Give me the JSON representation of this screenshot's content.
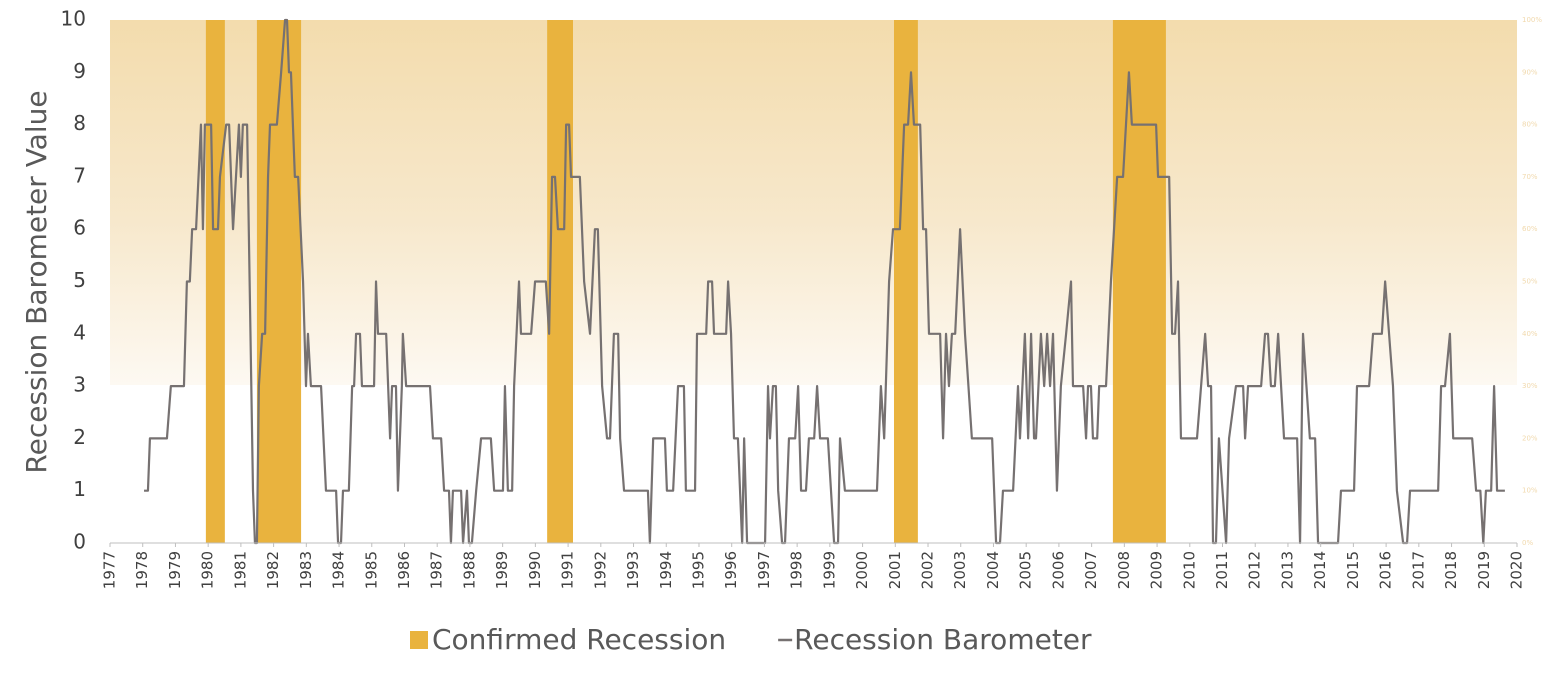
{
  "chart_data": {
    "type": "line",
    "y_label": "Recession Barometer Value",
    "xlim": [
      1977,
      2020
    ],
    "xticks": [
      1977,
      1978,
      1979,
      1980,
      1981,
      1982,
      1983,
      1984,
      1985,
      1986,
      1987,
      1988,
      1989,
      1990,
      1991,
      1992,
      1993,
      1994,
      1995,
      1996,
      1997,
      1998,
      1999,
      2000,
      2001,
      2002,
      2003,
      2004,
      2005,
      2006,
      2007,
      2008,
      2009,
      2010,
      2011,
      2012,
      2013,
      2014,
      2015,
      2016,
      2017,
      2018,
      2019,
      2020
    ],
    "ylim": [
      0,
      10
    ],
    "yticks": [
      0,
      1,
      2,
      3,
      4,
      5,
      6,
      7,
      8,
      9,
      10
    ],
    "y2lim": [
      0,
      100
    ],
    "y2ticks": [
      {
        "value": 0,
        "label": "0%"
      },
      {
        "value": 10,
        "label": "10%"
      },
      {
        "value": 20,
        "label": "20%"
      },
      {
        "value": 30,
        "label": "30%"
      },
      {
        "value": 40,
        "label": "40%"
      },
      {
        "value": 50,
        "label": "50%"
      },
      {
        "value": 60,
        "label": "60%"
      },
      {
        "value": 70,
        "label": "70%"
      },
      {
        "value": 80,
        "label": "80%"
      },
      {
        "value": 90,
        "label": "90%"
      },
      {
        "value": 100,
        "label": "100%"
      }
    ],
    "series": [
      {
        "name": "Confirmed Recession",
        "type": "band",
        "color": "#e9b33e",
        "ranges": [
          [
            1979.93,
            1980.51
          ],
          [
            1981.49,
            1982.84
          ],
          [
            1990.36,
            1991.15
          ],
          [
            2000.96,
            2001.69
          ],
          [
            2007.65,
            2009.27
          ]
        ]
      },
      {
        "name": "Recession Barometer",
        "type": "line",
        "color": "#767171",
        "x": [
          1978.04,
          1978.16,
          1978.22,
          1978.74,
          1978.86,
          1979.26,
          1979.35,
          1979.44,
          1979.51,
          1979.63,
          1979.78,
          1979.84,
          1979.9,
          1980.09,
          1980.15,
          1980.3,
          1980.36,
          1980.55,
          1980.64,
          1980.76,
          1980.94,
          1981.0,
          1981.06,
          1981.19,
          1981.37,
          1981.43,
          1981.49,
          1981.55,
          1981.65,
          1981.74,
          1981.83,
          1981.89,
          1982.1,
          1982.23,
          1982.35,
          1982.41,
          1982.47,
          1982.53,
          1982.65,
          1982.75,
          1982.9,
          1982.99,
          1983.05,
          1983.14,
          1983.45,
          1983.6,
          1983.91,
          1983.97,
          1984.06,
          1984.12,
          1984.3,
          1984.4,
          1984.46,
          1984.52,
          1984.64,
          1984.7,
          1985.07,
          1985.13,
          1985.19,
          1985.44,
          1985.56,
          1985.62,
          1985.74,
          1985.8,
          1985.92,
          1985.95,
          1986.05,
          1986.78,
          1986.87,
          1987.12,
          1987.21,
          1987.36,
          1987.42,
          1987.48,
          1987.73,
          1987.79,
          1987.91,
          1987.97,
          1988.06,
          1988.19,
          1988.34,
          1988.64,
          1988.74,
          1989.01,
          1989.07,
          1989.16,
          1989.29,
          1989.35,
          1989.5,
          1989.56,
          1989.87,
          1989.99,
          1990.32,
          1990.42,
          1990.51,
          1990.6,
          1990.69,
          1990.88,
          1990.94,
          1991.03,
          1991.09,
          1991.36,
          1991.49,
          1991.67,
          1991.82,
          1991.91,
          1992.04,
          1992.19,
          1992.28,
          1992.4,
          1992.53,
          1992.59,
          1992.71,
          1993.44,
          1993.5,
          1993.6,
          1993.96,
          1994.02,
          1994.21,
          1994.36,
          1994.54,
          1994.6,
          1994.88,
          1994.94,
          1995.22,
          1995.28,
          1995.4,
          1995.46,
          1995.83,
          1995.89,
          1995.98,
          1996.07,
          1996.19,
          1996.32,
          1996.38,
          1996.47,
          1997.02,
          1997.11,
          1997.17,
          1997.26,
          1997.35,
          1997.42,
          1997.54,
          1997.63,
          1997.75,
          1997.94,
          1998.03,
          1998.12,
          1998.27,
          1998.36,
          1998.52,
          1998.61,
          1998.7,
          1998.94,
          1999.13,
          1999.25,
          1999.31,
          1999.46,
          2000.44,
          2000.56,
          2000.66,
          2000.81,
          2000.93,
          2001.14,
          2001.27,
          2001.39,
          2001.48,
          2001.57,
          2001.76,
          2001.85,
          2001.94,
          2002.03,
          2002.37,
          2002.46,
          2002.55,
          2002.64,
          2002.73,
          2002.83,
          2002.98,
          2003.13,
          2003.34,
          2003.96,
          2004.08,
          2004.2,
          2004.29,
          2004.6,
          2004.75,
          2004.81,
          2004.96,
          2005.06,
          2005.15,
          2005.24,
          2005.3,
          2005.45,
          2005.55,
          2005.64,
          2005.73,
          2005.82,
          2005.94,
          2006.06,
          2006.22,
          2006.37,
          2006.43,
          2006.74,
          2006.83,
          2006.89,
          2006.98,
          2007.04,
          2007.17,
          2007.23,
          2007.44,
          2007.59,
          2007.78,
          2007.96,
          2008.14,
          2008.23,
          2008.97,
          2009.03,
          2009.37,
          2009.46,
          2009.55,
          2009.64,
          2009.73,
          2010.22,
          2010.47,
          2010.56,
          2010.65,
          2010.71,
          2010.8,
          2010.89,
          2011.11,
          2011.2,
          2011.41,
          2011.63,
          2011.69,
          2011.78,
          2012.18,
          2012.3,
          2012.39,
          2012.48,
          2012.6,
          2012.7,
          2012.88,
          2013.28,
          2013.37,
          2013.46,
          2013.67,
          2013.83,
          2013.92,
          2014.53,
          2014.62,
          2015.02,
          2015.11,
          2015.48,
          2015.6,
          2015.87,
          2015.97,
          2016.21,
          2016.33,
          2016.52,
          2016.64,
          2016.73,
          2017.59,
          2017.68,
          2017.8,
          2017.95,
          2018.05,
          2018.63,
          2018.75,
          2018.88,
          2018.97,
          2019.05,
          2019.21,
          2019.3,
          2019.39,
          2019.63
        ],
        "values": [
          1,
          1,
          2,
          2,
          3,
          3,
          5,
          5,
          6,
          6,
          8,
          6,
          8,
          8,
          6,
          6,
          7,
          8,
          8,
          6,
          8,
          7,
          8,
          8,
          1,
          0,
          0,
          3,
          4,
          4,
          7,
          8,
          8,
          9,
          10,
          10,
          9,
          9,
          7,
          7,
          5,
          3,
          4,
          3,
          3,
          1,
          1,
          0,
          0,
          1,
          1,
          3,
          3,
          4,
          4,
          3,
          3,
          5,
          4,
          4,
          2,
          3,
          3,
          1,
          3,
          4,
          3,
          3,
          2,
          2,
          1,
          1,
          0,
          1,
          1,
          0,
          1,
          0,
          0,
          1,
          2,
          2,
          1,
          1,
          3,
          1,
          1,
          3,
          5,
          4,
          4,
          5,
          5,
          4,
          7,
          7,
          6,
          6,
          8,
          8,
          7,
          7,
          5,
          4,
          6,
          6,
          3,
          2,
          2,
          4,
          4,
          2,
          1,
          1,
          0,
          2,
          2,
          1,
          1,
          3,
          3,
          1,
          1,
          4,
          4,
          5,
          5,
          4,
          4,
          5,
          4,
          2,
          2,
          0,
          2,
          0,
          0,
          3,
          2,
          3,
          3,
          1,
          0,
          0,
          2,
          2,
          3,
          1,
          1,
          2,
          2,
          3,
          2,
          2,
          0,
          0,
          2,
          1,
          1,
          3,
          2,
          5,
          6,
          6,
          8,
          8,
          9,
          8,
          8,
          6,
          6,
          4,
          4,
          2,
          4,
          3,
          4,
          4,
          6,
          4,
          2,
          2,
          0,
          0,
          1,
          1,
          3,
          2,
          4,
          2,
          4,
          2,
          2,
          4,
          3,
          4,
          3,
          4,
          1,
          3,
          4,
          5,
          3,
          3,
          2,
          3,
          3,
          2,
          2,
          3,
          3,
          5,
          7,
          7,
          9,
          8,
          8,
          7,
          7,
          4,
          4,
          5,
          2,
          2,
          4,
          3,
          3,
          0,
          0,
          2,
          0,
          2,
          3,
          3,
          2,
          3,
          3,
          4,
          4,
          3,
          3,
          4,
          2,
          2,
          0,
          4,
          2,
          2,
          0,
          0,
          1,
          1,
          3,
          3,
          4,
          4,
          5,
          3,
          1,
          0,
          0,
          1,
          1,
          3,
          3,
          4,
          2,
          2,
          1,
          1,
          0,
          1,
          1,
          3,
          1,
          1
        ]
      }
    ]
  }
}
